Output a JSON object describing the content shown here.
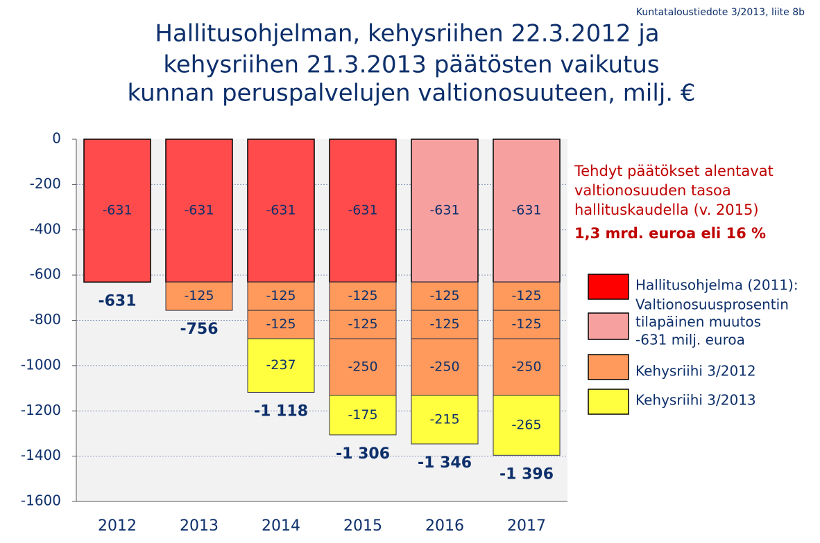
{
  "chart_data": {
    "type": "stacked-bar",
    "source_note": "Kuntataloustiedote 3/2013, liite 8b",
    "title": [
      "Hallitusohjelman, kehysriihen 22.3.2012 ja",
      "kehysriihen 21.3.2013 päätösten vaikutus",
      "kunnan peruspalvelujen valtionosuuteen, milj. €"
    ],
    "annotation": [
      "Tehdyt päätökset  alentavat",
      "valtionosuuden tasoa",
      "hallituskaudella (v. 2015)"
    ],
    "annotation_bold": "1,3 mrd. euroa eli 16 %",
    "categories": [
      "2012",
      "2013",
      "2014",
      "2015",
      "2016",
      "2017"
    ],
    "series": [
      {
        "name": [
          "Hallitusohjelma (2011):"
        ],
        "color": "#ff4b4b",
        "values": [
          [
            -631
          ],
          [
            -631
          ],
          [
            -631
          ],
          [
            -631
          ],
          null,
          null
        ]
      },
      {
        "name": [
          "Valtionosuusprosentin",
          "tilapäinen muutos",
          "-631 milj. euroa"
        ],
        "color": "#f7a0a0",
        "values": [
          null,
          null,
          null,
          null,
          [
            -631
          ],
          [
            -631
          ]
        ]
      },
      {
        "name": [
          "Kehysriihi 3/2012"
        ],
        "color": "#ff9a5c",
        "values": [
          null,
          [
            -125
          ],
          [
            -125,
            -125
          ],
          [
            -125,
            -125,
            -250
          ],
          [
            -125,
            -125,
            -250
          ],
          [
            -125,
            -125,
            -250
          ]
        ]
      },
      {
        "name": [
          "Kehysriihi 3/2013"
        ],
        "color": "#ffff40",
        "values": [
          null,
          null,
          [
            -237
          ],
          [
            -175
          ],
          [
            -215
          ],
          [
            -265
          ]
        ]
      }
    ],
    "totals": {
      "values": [
        -631,
        -756,
        -1118,
        -1306,
        -1346,
        -1396
      ],
      "value_labels": [
        "-631",
        "-756",
        "-1 118",
        "-1 306",
        "-1 346",
        "-1 396"
      ]
    },
    "ylim": [
      -1600,
      0
    ],
    "yticks": [
      0,
      -200,
      -400,
      -600,
      -800,
      -1000,
      -1200,
      -1400,
      -1600
    ],
    "grid": true
  }
}
